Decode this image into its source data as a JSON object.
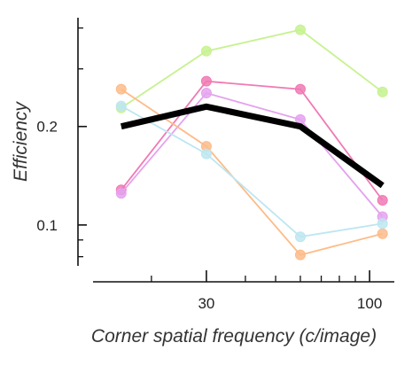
{
  "chart_data": {
    "type": "line",
    "xlabel": "Corner spatial frequency (c/image)",
    "ylabel": "Efficiency",
    "x_scale": "log",
    "y_scale": "log",
    "xlim": [
      13,
      120
    ],
    "ylim": [
      0.075,
      0.43
    ],
    "x_ticks": [
      {
        "value": 30,
        "label": "30"
      },
      {
        "value": 100,
        "label": "100"
      }
    ],
    "x_minor_ticks": [
      20,
      40,
      50,
      60,
      70,
      80,
      90
    ],
    "y_ticks": [
      {
        "value": 0.1,
        "label": "0.1"
      },
      {
        "value": 0.2,
        "label": "0.2"
      }
    ],
    "y_minor_ticks": [
      0.08,
      0.09,
      0.3,
      0.4
    ],
    "grid": false,
    "legend": "none",
    "x": [
      16,
      30,
      60,
      110
    ],
    "series": [
      {
        "color": "#c6f28f",
        "values": [
          0.228,
          0.34,
          0.395,
          0.255
        ]
      },
      {
        "color": "#f07ab4",
        "values": [
          0.128,
          0.275,
          0.26,
          0.119
        ]
      },
      {
        "color": "#e4a2ee",
        "values": [
          0.125,
          0.253,
          0.21,
          0.106
        ]
      },
      {
        "color": "#fdbb88",
        "values": [
          0.26,
          0.174,
          0.081,
          0.094
        ]
      },
      {
        "color": "#bde6f1",
        "values": [
          0.231,
          0.165,
          0.092,
          0.101
        ]
      }
    ],
    "mean_series": {
      "color": "#000000",
      "values": [
        0.2,
        0.23,
        0.2,
        0.132
      ]
    }
  }
}
